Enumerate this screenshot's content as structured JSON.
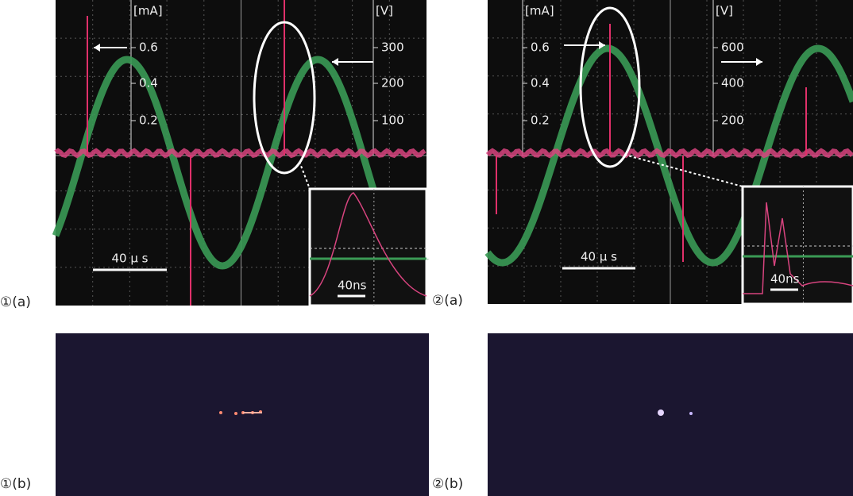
{
  "panels": [
    {
      "scope": {
        "current_unit": "[mA]",
        "current_ticks": [
          "0.6",
          "0.4",
          "0.2"
        ],
        "voltage_unit": "[V]",
        "voltage_ticks": [
          "300",
          "200",
          "100"
        ],
        "time_scale": "40 μ s",
        "inset_scale": "40ns"
      },
      "scope_label": "①(a)",
      "image_label": "①(b)"
    },
    {
      "scope": {
        "current_unit": "[mA]",
        "current_ticks": [
          "0.6",
          "0.4",
          "0.2"
        ],
        "voltage_unit": "[V]",
        "voltage_ticks": [
          "600",
          "400",
          "200"
        ],
        "time_scale": "40 μ s",
        "inset_scale": "40ns"
      },
      "scope_label": "②(a)",
      "image_label": "②(b)"
    }
  ]
}
